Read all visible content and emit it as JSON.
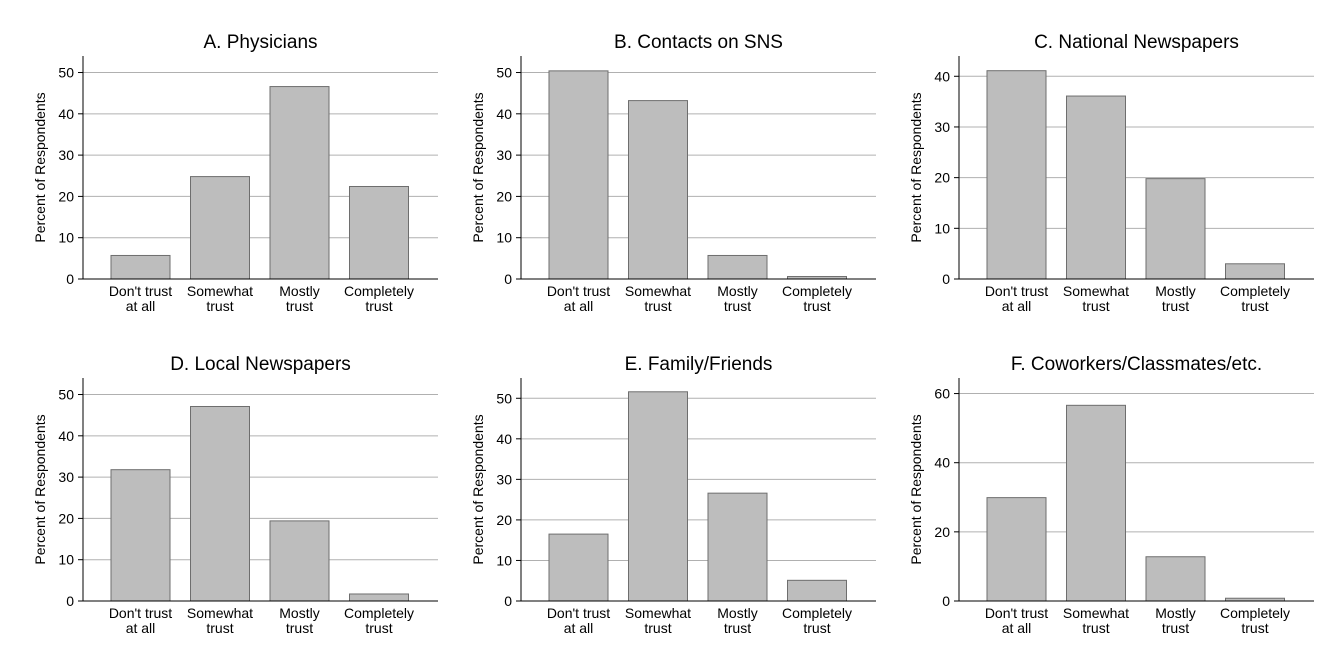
{
  "chart_data": [
    {
      "type": "bar",
      "title": "A. Physicians",
      "ylabel": "Percent of Respondents",
      "categories": [
        "Don't trust\nat all",
        "Somewhat\ntrust",
        "Mostly\ntrust",
        "Completely\ntrust"
      ],
      "values": [
        5.7,
        24.8,
        46.6,
        22.4
      ],
      "ylim": [
        0,
        54
      ],
      "yticks": [
        0,
        10,
        20,
        30,
        40,
        50
      ],
      "grid": true
    },
    {
      "type": "bar",
      "title": "B. Contacts on SNS",
      "ylabel": "Percent of Respondents",
      "categories": [
        "Don't trust\nat all",
        "Somewhat\ntrust",
        "Mostly\ntrust",
        "Completely\ntrust"
      ],
      "values": [
        50.4,
        43.2,
        5.7,
        0.6
      ],
      "ylim": [
        0,
        54
      ],
      "yticks": [
        0,
        10,
        20,
        30,
        40,
        50
      ],
      "grid": true
    },
    {
      "type": "bar",
      "title": "C. National Newspapers",
      "ylabel": "Percent of Respondents",
      "categories": [
        "Don't trust\nat all",
        "Somewhat\ntrust",
        "Mostly\ntrust",
        "Completely\ntrust"
      ],
      "values": [
        41.1,
        36.1,
        19.8,
        3.0
      ],
      "ylim": [
        0,
        44
      ],
      "yticks": [
        0,
        10,
        20,
        30,
        40
      ],
      "grid": true
    },
    {
      "type": "bar",
      "title": "D. Local Newspapers",
      "ylabel": "Percent of Respondents",
      "categories": [
        "Don't trust\nat all",
        "Somewhat\ntrust",
        "Mostly\ntrust",
        "Completely\ntrust"
      ],
      "values": [
        31.8,
        47.1,
        19.4,
        1.7
      ],
      "ylim": [
        0,
        54
      ],
      "yticks": [
        0,
        10,
        20,
        30,
        40,
        50
      ],
      "grid": true
    },
    {
      "type": "bar",
      "title": "E. Family/Friends",
      "ylabel": "Percent of Respondents",
      "categories": [
        "Don't trust\nat all",
        "Somewhat\ntrust",
        "Mostly\ntrust",
        "Completely\ntrust"
      ],
      "values": [
        16.5,
        51.6,
        26.6,
        5.1
      ],
      "ylim": [
        0,
        55
      ],
      "yticks": [
        0,
        10,
        20,
        30,
        40,
        50
      ],
      "grid": true
    },
    {
      "type": "bar",
      "title": "F. Coworkers/Classmates/etc.",
      "ylabel": "Percent of Respondents",
      "categories": [
        "Don't trust\nat all",
        "Somewhat\ntrust",
        "Mostly\ntrust",
        "Completely\ntrust"
      ],
      "values": [
        29.9,
        56.6,
        12.8,
        0.8
      ],
      "ylim": [
        0,
        64.5
      ],
      "yticks": [
        0,
        20,
        40,
        60
      ],
      "grid": true
    }
  ]
}
